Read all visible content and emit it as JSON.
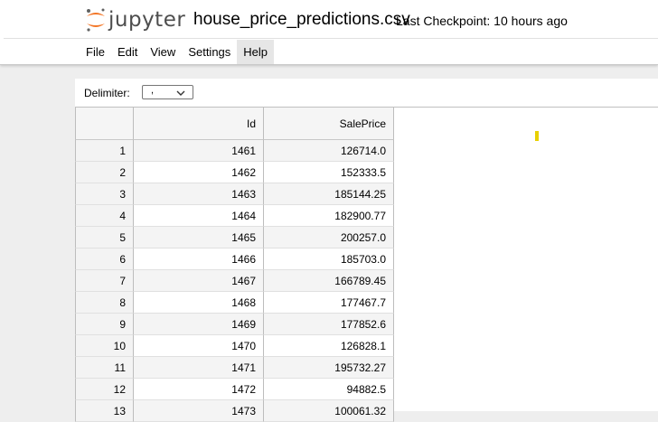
{
  "header": {
    "logo_text": "jupyter",
    "file_title": "house_price_predictions.csv",
    "checkpoint": "Last Checkpoint: 10 hours ago"
  },
  "menu": [
    "File",
    "Edit",
    "View",
    "Settings",
    "Help"
  ],
  "active_menu": "Help",
  "toolbar": {
    "delimiter_label": "Delimiter:",
    "delimiter_value": ","
  },
  "table": {
    "columns": [
      "",
      "Id",
      "SalePrice"
    ],
    "rows": [
      [
        "1",
        "1461",
        "126714.0"
      ],
      [
        "2",
        "1462",
        "152333.5"
      ],
      [
        "3",
        "1463",
        "185144.25"
      ],
      [
        "4",
        "1464",
        "182900.77"
      ],
      [
        "5",
        "1465",
        "200257.0"
      ],
      [
        "6",
        "1466",
        "185703.0"
      ],
      [
        "7",
        "1467",
        "166789.45"
      ],
      [
        "8",
        "1468",
        "177467.7"
      ],
      [
        "9",
        "1469",
        "177852.6"
      ],
      [
        "10",
        "1470",
        "126828.1"
      ],
      [
        "11",
        "1471",
        "195732.27"
      ],
      [
        "12",
        "1472",
        "94882.5"
      ],
      [
        "13",
        "1473",
        "100061.32"
      ]
    ]
  },
  "colors": {
    "logo_orange": "#f37626",
    "logo_gray": "#616262",
    "cursor": "#e8d000"
  }
}
